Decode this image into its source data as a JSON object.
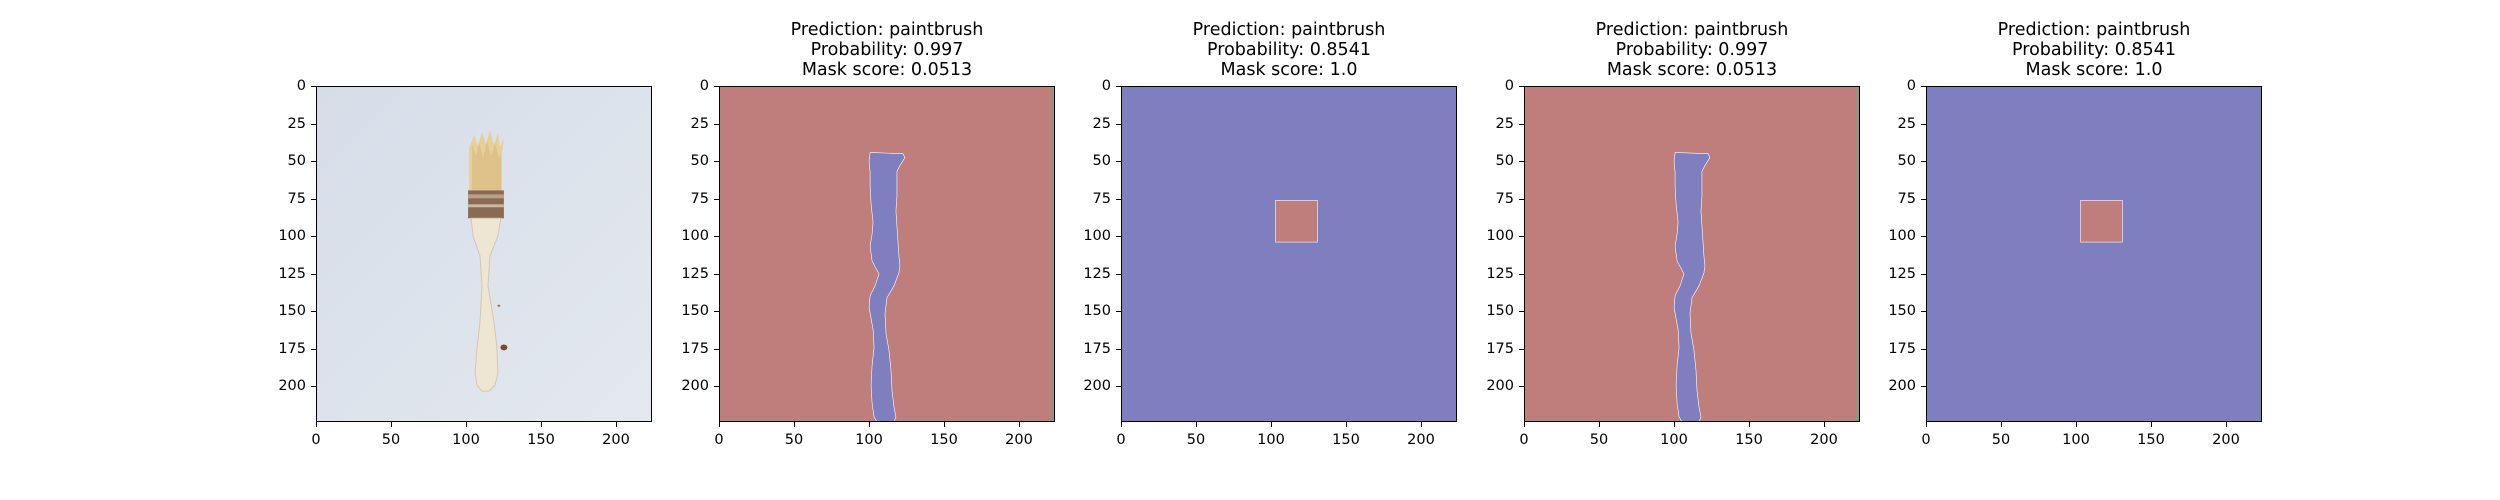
{
  "figure": {
    "panels": [
      {
        "kind": "photo",
        "title": []
      },
      {
        "kind": "mask-brush",
        "title": [
          "Prediction: paintbrush",
          "Probability: 0.997",
          "Mask score: 0.0513"
        ]
      },
      {
        "kind": "mask-square",
        "title": [
          "Prediction: paintbrush",
          "Probability: 0.8541",
          "Mask score: 1.0"
        ]
      },
      {
        "kind": "mask-brush",
        "title": [
          "Prediction: paintbrush",
          "Probability: 0.997",
          "Mask score: 0.0513"
        ]
      },
      {
        "kind": "mask-square",
        "title": [
          "Prediction: paintbrush",
          "Probability: 0.8541",
          "Mask score: 1.0"
        ]
      }
    ],
    "y_ticks": [
      "0",
      "25",
      "50",
      "75",
      "100",
      "125",
      "150",
      "175",
      "200"
    ],
    "x_ticks": [
      "0",
      "50",
      "100",
      "150",
      "200"
    ],
    "axis_range": [
      0,
      224
    ],
    "colors": {
      "mask_red": "#bf7d7b",
      "mask_blue": "#7f7fbf",
      "photo_bg": "#dde3ec"
    }
  }
}
